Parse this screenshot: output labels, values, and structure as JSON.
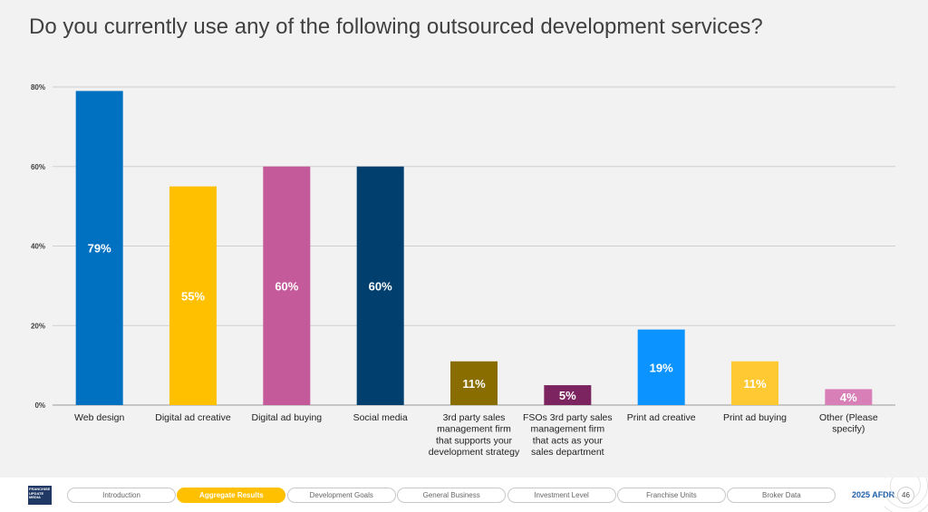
{
  "title": "Do you currently use any of the following outsourced development services?",
  "chart_data": {
    "type": "bar",
    "categories": [
      [
        "Web design"
      ],
      [
        "Digital ad creative"
      ],
      [
        "Digital ad buying"
      ],
      [
        "Social media"
      ],
      [
        "3rd party sales",
        "management firm",
        "that supports your",
        "development strategy"
      ],
      [
        "FSOs 3rd party sales",
        "management firm",
        "that acts as your",
        "sales department"
      ],
      [
        "Print ad creative"
      ],
      [
        "Print ad buying"
      ],
      [
        "Other (Please",
        "specify)"
      ]
    ],
    "values": [
      79,
      55,
      60,
      60,
      11,
      5,
      19,
      11,
      4
    ],
    "data_labels": [
      "79%",
      "55%",
      "60%",
      "60%",
      "11%",
      "5%",
      "19%",
      "11%",
      "4%"
    ],
    "colors": [
      "#0070c0",
      "#ffc000",
      "#c55a9a",
      "#003f6e",
      "#8a6d00",
      "#7b2460",
      "#0b93ff",
      "#ffc933",
      "#d87fb8"
    ],
    "label_colors": [
      "#ffffff",
      "#ffffff",
      "#ffffff",
      "#ffffff",
      "#ffffff",
      "#ffffff",
      "#ffffff",
      "#ffffff",
      "#ffffff"
    ],
    "yticks": [
      0,
      20,
      40,
      60,
      80
    ],
    "ytick_labels": [
      "0%",
      "20%",
      "40%",
      "60%",
      "80%"
    ],
    "ylim": [
      0,
      80
    ],
    "grid": true,
    "legend": "none"
  },
  "footer": {
    "logo_text": "FRANCHISE UPDATE MEDIA",
    "nav": [
      "Introduction",
      "Aggregate Results",
      "Development Goals",
      "General Business",
      "Investment Level",
      "Franchise Units",
      "Broker Data"
    ],
    "active_nav": "Aggregate Results",
    "report": "2025 AFDR",
    "page": "46"
  }
}
